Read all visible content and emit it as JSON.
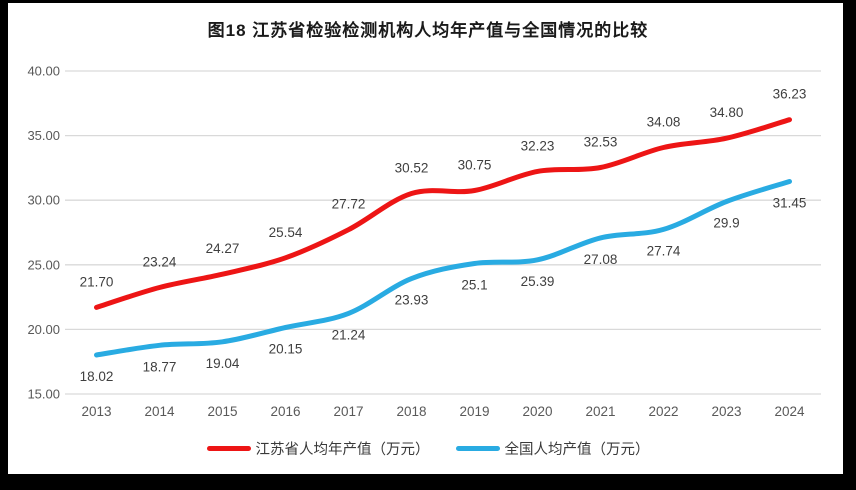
{
  "chart_data": {
    "type": "line",
    "title": "图18  江苏省检验检测机构人均年产值与全国情况的比较",
    "categories": [
      "2013",
      "2014",
      "2015",
      "2016",
      "2017",
      "2018",
      "2019",
      "2020",
      "2021",
      "2022",
      "2023",
      "2024"
    ],
    "series": [
      {
        "name": "江苏省人均年产值（万元）",
        "color": "#ed1515",
        "label_position": "above",
        "values": [
          21.7,
          23.24,
          24.27,
          25.54,
          27.72,
          30.52,
          30.75,
          32.23,
          32.53,
          34.08,
          34.8,
          36.23
        ],
        "labels": [
          "21.70",
          "23.24",
          "24.27",
          "25.54",
          "27.72",
          "30.52",
          "30.75",
          "32.23",
          "32.53",
          "34.08",
          "34.80",
          "36.23"
        ]
      },
      {
        "name": "全国人均产值（万元）",
        "color": "#29abe2",
        "label_position": "below",
        "values": [
          18.02,
          18.77,
          19.04,
          20.15,
          21.24,
          23.93,
          25.1,
          25.39,
          27.08,
          27.74,
          29.9,
          31.45
        ],
        "labels": [
          "18.02",
          "18.77",
          "19.04",
          "20.15",
          "21.24",
          "23.93",
          "25.1",
          "25.39",
          "27.08",
          "27.74",
          "29.9",
          "31.45"
        ]
      }
    ],
    "ylim": [
      15,
      40
    ],
    "yticks": [
      "15.00",
      "20.00",
      "25.00",
      "30.00",
      "35.00",
      "40.00"
    ],
    "grid": true,
    "legend_position": "bottom",
    "colors": {
      "gridline": "#d9d9d9",
      "tick_label": "#595959",
      "data_label": "#3f3f3f"
    }
  }
}
